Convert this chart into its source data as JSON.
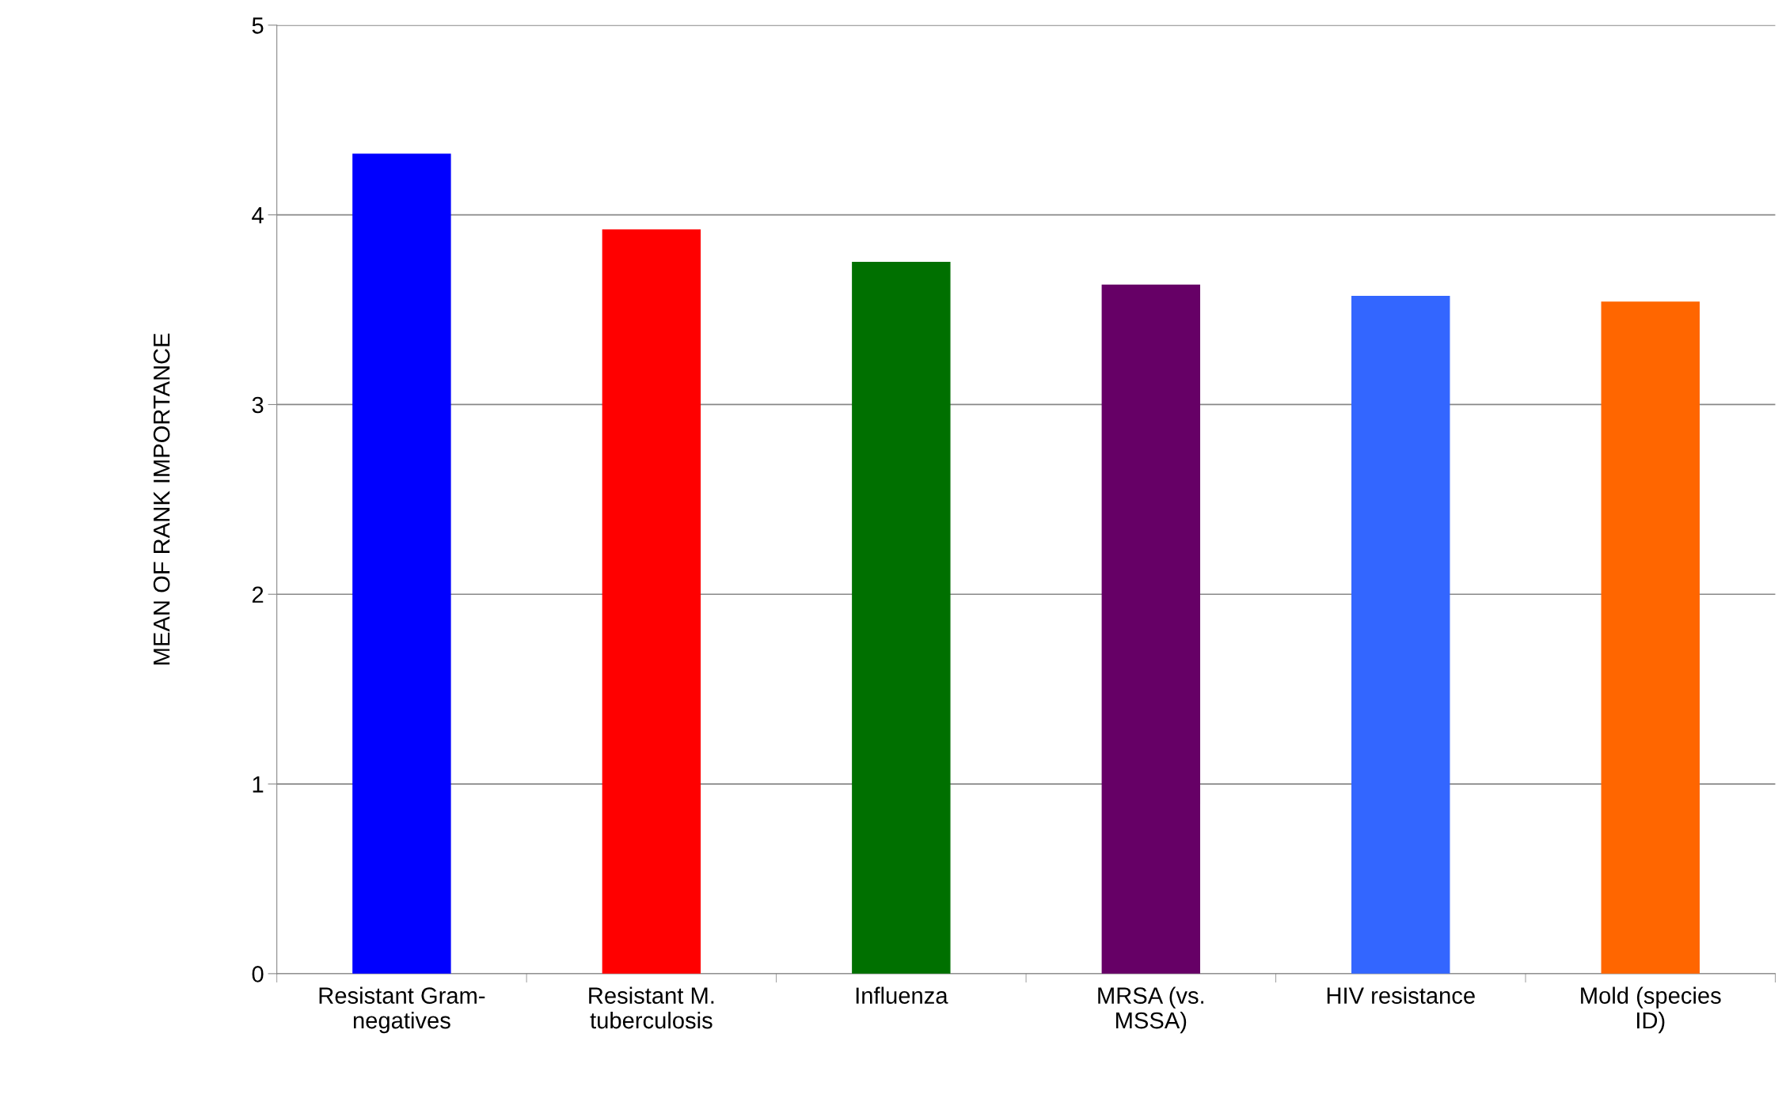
{
  "chart_data": {
    "type": "bar",
    "ylabel": "MEAN OF RANK IMPORTANCE",
    "categories": [
      "Resistant Gram-\nnegatives",
      "Resistant M.\ntuberculosis",
      "Influenza",
      "MRSA (vs.\nMSSA)",
      "HIV resistance",
      "Mold (species\nID)"
    ],
    "values": [
      4.32,
      3.92,
      3.75,
      3.63,
      3.57,
      3.54
    ],
    "colors": [
      "#0000ff",
      "#ff0000",
      "#007000",
      "#660066",
      "#3366ff",
      "#ff6600"
    ],
    "ylim": [
      0,
      5
    ],
    "yticks": [
      0,
      1,
      2,
      3,
      4,
      5
    ],
    "grid": "y",
    "legend": false
  }
}
